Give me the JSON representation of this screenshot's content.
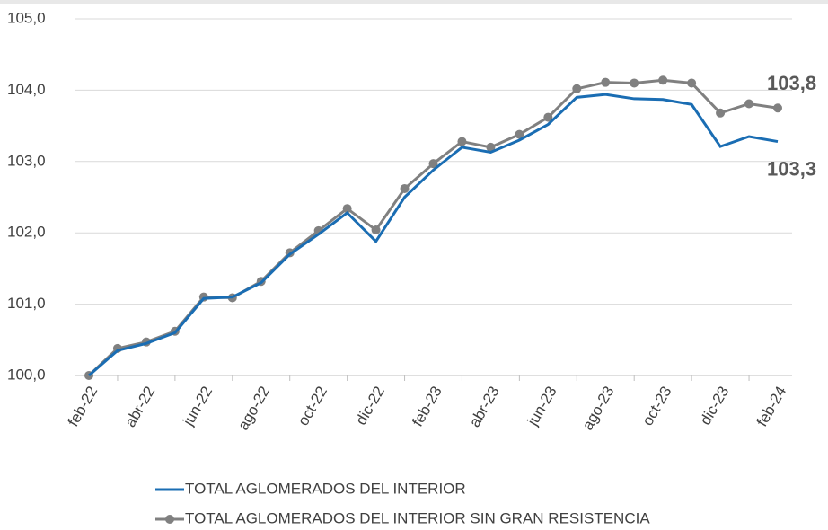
{
  "chart_data": {
    "type": "line",
    "categories": [
      "feb-22",
      null,
      "abr-22",
      null,
      "jun-22",
      null,
      "ago-22",
      null,
      "oct-22",
      null,
      "dic-22",
      null,
      "feb-23",
      null,
      "abr-23",
      null,
      "jun-23",
      null,
      "ago-23",
      null,
      "oct-23",
      null,
      "dic-23",
      null,
      "feb-24"
    ],
    "series": [
      {
        "name": "TOTAL AGLOMERADOS DEL INTERIOR",
        "color": "#1a6db3",
        "markers": false,
        "values": [
          100.0,
          100.35,
          100.45,
          100.6,
          101.08,
          101.1,
          101.3,
          101.7,
          101.98,
          102.28,
          101.88,
          102.5,
          102.88,
          103.2,
          103.13,
          103.3,
          103.52,
          103.9,
          103.94,
          103.88,
          103.87,
          103.8,
          103.21,
          103.35,
          103.28
        ],
        "value_labels": [
          null,
          null,
          null,
          null,
          null,
          null,
          null,
          null,
          null,
          null,
          null,
          null,
          null,
          null,
          null,
          null,
          null,
          null,
          null,
          null,
          null,
          null,
          null,
          null,
          "103,3"
        ]
      },
      {
        "name": "TOTAL AGLOMERADOS DEL INTERIOR SIN GRAN RESISTENCIA",
        "color": "#808080",
        "markers": true,
        "values": [
          100.0,
          100.38,
          100.47,
          100.62,
          101.1,
          101.09,
          101.32,
          101.72,
          102.03,
          102.34,
          102.04,
          102.62,
          102.97,
          103.28,
          103.2,
          103.38,
          103.62,
          104.02,
          104.11,
          104.1,
          104.14,
          104.1,
          103.68,
          103.81,
          103.75
        ],
        "value_labels": [
          null,
          null,
          null,
          null,
          null,
          null,
          null,
          null,
          null,
          null,
          null,
          null,
          null,
          null,
          null,
          null,
          null,
          null,
          null,
          null,
          null,
          null,
          null,
          null,
          "103,8"
        ]
      }
    ],
    "ylim": [
      100,
      105
    ],
    "yticks": [
      {
        "value": 100,
        "label": "100,0"
      },
      {
        "value": 101,
        "label": "101,0"
      },
      {
        "value": 102,
        "label": "102,0"
      },
      {
        "value": 103,
        "label": "103,0"
      },
      {
        "value": 104,
        "label": "104,0"
      },
      {
        "value": 105,
        "label": "105,0"
      }
    ],
    "grid": true,
    "legend": "bottom"
  }
}
